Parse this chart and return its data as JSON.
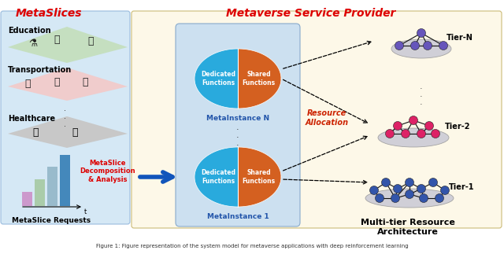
{
  "title_metaslices": "MetaSlices",
  "title_msp": "Metaverse Service Provider",
  "label_education": "Education",
  "label_transportation": "Transportation",
  "label_healthcare": "Healthcare",
  "label_metaslice_requests": "MetaSlice Requests",
  "label_decomposition": "MetaSlice\nDecomposition\n& Analysis",
  "label_dedicated": "Dedicated\nFunctions",
  "label_shared": "Shared\nFunctions",
  "label_metainstance_n": "MetaInstance N",
  "label_metainstance_1": "MetaInstance 1",
  "label_resource_alloc": "Resource\nAllocation",
  "label_multitier": "Multi-tier Resource\nArchitecture",
  "label_tier_n": "Tier-N",
  "label_tier_2": "Tier-2",
  "label_tier_1": "Tier-1",
  "color_metaslices_title": "#dd0000",
  "color_msp_title": "#dd0000",
  "color_decomp_label": "#dd0000",
  "color_resource_alloc": "#cc2200",
  "color_left_bg": "#d5e8f5",
  "color_right_bg": "#fdf8e8",
  "color_metainstance_bg": "#b8d8f0",
  "color_dedicated": "#29aadd",
  "color_shared": "#d46020",
  "color_arrow_blue": "#1155bb",
  "color_tier_n_node": "#6655bb",
  "color_tier_2_node": "#dd2266",
  "color_tier_1_node": "#3355aa",
  "color_tier_ellipse_n": "#c8c8d8",
  "color_tier_ellipse_2": "#c0c0d0",
  "color_tier_ellipse_1": "#b8bdd8",
  "color_edu_diamond": "#c5dfc0",
  "color_trans_diamond": "#f0cccc",
  "color_health_diamond": "#c8c8c8",
  "bar_colors": [
    "#cc99cc",
    "#aaccaa",
    "#99bbcc",
    "#4488bb"
  ],
  "fig_caption": "Figure 1: Figure representation of the system model for metaverse applications with deep reinforcement learning"
}
